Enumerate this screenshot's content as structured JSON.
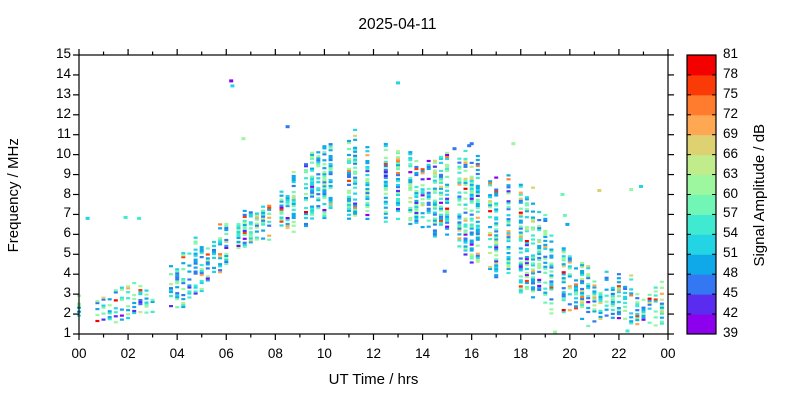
{
  "chart_data": {
    "type": "scatter",
    "title": "2025-04-11",
    "xlabel": "UT Time / hrs",
    "ylabel": "Frequency / MHz",
    "xlim": [
      0,
      24
    ],
    "ylim": [
      1,
      15
    ],
    "x_tick_hours": [
      0,
      2,
      4,
      6,
      8,
      10,
      12,
      14,
      16,
      18,
      20,
      22,
      24
    ],
    "x_tick_labels": [
      "00",
      "02",
      "04",
      "06",
      "08",
      "10",
      "12",
      "14",
      "16",
      "18",
      "20",
      "22",
      "00"
    ],
    "x_minor_tick_hours": [
      1,
      3,
      5,
      7,
      9,
      11,
      13,
      15,
      17,
      19,
      21,
      23
    ],
    "y_tick_labels": [
      1,
      2,
      3,
      4,
      5,
      6,
      7,
      8,
      9,
      10,
      11,
      12,
      13,
      14,
      15
    ],
    "grid": "off",
    "frame_color": "#000000",
    "background_color": "#ffffff",
    "colorbar": {
      "label": "Signal Amplitude / dB",
      "min": 39,
      "max": 81,
      "step": 3,
      "tick_labels": [
        39,
        42,
        45,
        48,
        51,
        54,
        57,
        60,
        63,
        66,
        69,
        72,
        75,
        78,
        81
      ],
      "band_colors_bottom_to_top": [
        "#8c00ee",
        "#5a2cf0",
        "#3377f2",
        "#0fa8e8",
        "#22d4e4",
        "#3fead0",
        "#72f6b5",
        "#9df79e",
        "#c0ec8c",
        "#ddd172",
        "#ffa853",
        "#ff7b2e",
        "#fa3b08",
        "#f40000"
      ]
    },
    "sounding_interval_hours": 0.25,
    "frequency_step_mhz": 0.1,
    "envelope": [
      {
        "hour": 0,
        "f_min": 1.7,
        "f_max": 2.7,
        "density": 0.5,
        "warm_fraction": 0.05
      },
      {
        "hour": 1,
        "f_min": 1.6,
        "f_max": 2.9,
        "density": 0.55,
        "warm_fraction": 0.05
      },
      {
        "hour": 2,
        "f_min": 1.7,
        "f_max": 3.3,
        "density": 0.55,
        "warm_fraction": 0.06
      },
      {
        "hour": 3,
        "f_min": 1.8,
        "f_max": 3.5,
        "density": 0.5,
        "warm_fraction": 0.06
      },
      {
        "hour": 4,
        "f_min": 2.2,
        "f_max": 4.8,
        "density": 0.5,
        "warm_fraction": 0.05
      },
      {
        "hour": 5,
        "f_min": 3.2,
        "f_max": 5.8,
        "density": 0.55,
        "warm_fraction": 0.05
      },
      {
        "hour": 6,
        "f_min": 4.4,
        "f_max": 6.6,
        "density": 0.6,
        "warm_fraction": 0.05
      },
      {
        "hour": 7,
        "f_min": 5.6,
        "f_max": 7.3,
        "density": 0.65,
        "warm_fraction": 0.04
      },
      {
        "hour": 8,
        "f_min": 6.0,
        "f_max": 7.8,
        "density": 0.6,
        "warm_fraction": 0.04
      },
      {
        "hour": 9,
        "f_min": 6.3,
        "f_max": 9.3,
        "density": 0.65,
        "warm_fraction": 0.04
      },
      {
        "hour": 10,
        "f_min": 6.5,
        "f_max": 10.4,
        "density": 0.68,
        "warm_fraction": 0.04
      },
      {
        "hour": 11,
        "f_min": 6.6,
        "f_max": 10.9,
        "density": 0.68,
        "warm_fraction": 0.04
      },
      {
        "hour": 12,
        "f_min": 6.4,
        "f_max": 10.9,
        "density": 0.68,
        "warm_fraction": 0.04
      },
      {
        "hour": 13,
        "f_min": 6.5,
        "f_max": 10.5,
        "density": 0.68,
        "warm_fraction": 0.05
      },
      {
        "hour": 14,
        "f_min": 6.2,
        "f_max": 10.0,
        "density": 0.62,
        "warm_fraction": 0.05
      },
      {
        "hour": 15,
        "f_min": 5.9,
        "f_max": 10.4,
        "density": 0.65,
        "warm_fraction": 0.06
      },
      {
        "hour": 16,
        "f_min": 4.6,
        "f_max": 9.8,
        "density": 0.7,
        "warm_fraction": 0.1
      },
      {
        "hour": 17,
        "f_min": 3.8,
        "f_max": 9.4,
        "density": 0.7,
        "warm_fraction": 0.11
      },
      {
        "hour": 18,
        "f_min": 2.7,
        "f_max": 8.7,
        "density": 0.65,
        "warm_fraction": 0.1
      },
      {
        "hour": 19,
        "f_min": 2.2,
        "f_max": 7.2,
        "density": 0.55,
        "warm_fraction": 0.09
      },
      {
        "hour": 20,
        "f_min": 1.8,
        "f_max": 4.7,
        "density": 0.6,
        "warm_fraction": 0.09
      },
      {
        "hour": 21,
        "f_min": 1.5,
        "f_max": 4.0,
        "density": 0.6,
        "warm_fraction": 0.08
      },
      {
        "hour": 22,
        "f_min": 1.4,
        "f_max": 3.7,
        "density": 0.6,
        "warm_fraction": 0.08
      },
      {
        "hour": 23,
        "f_min": 1.5,
        "f_max": 3.4,
        "density": 0.55,
        "warm_fraction": 0.07
      }
    ],
    "outliers": [
      {
        "t": 0.35,
        "f": 6.8,
        "db": 53
      },
      {
        "t": 1.9,
        "f": 6.85,
        "db": 54
      },
      {
        "t": 2.45,
        "f": 6.8,
        "db": 55
      },
      {
        "t": 6.2,
        "f": 13.7,
        "db": 40
      },
      {
        "t": 6.25,
        "f": 13.45,
        "db": 53
      },
      {
        "t": 6.7,
        "f": 10.8,
        "db": 62
      },
      {
        "t": 8.5,
        "f": 11.4,
        "db": 46
      },
      {
        "t": 13.0,
        "f": 13.6,
        "db": 52
      },
      {
        "t": 14.9,
        "f": 4.15,
        "db": 47
      },
      {
        "t": 15.3,
        "f": 10.3,
        "db": 46
      },
      {
        "t": 15.9,
        "f": 10.45,
        "db": 46
      },
      {
        "t": 16.0,
        "f": 10.55,
        "db": 46
      },
      {
        "t": 17.7,
        "f": 10.55,
        "db": 61
      },
      {
        "t": 19.4,
        "f": 1.1,
        "db": 61
      },
      {
        "t": 19.7,
        "f": 8.0,
        "db": 58
      },
      {
        "t": 19.8,
        "f": 6.95,
        "db": 58
      },
      {
        "t": 19.9,
        "f": 6.5,
        "db": 50
      },
      {
        "t": 21.2,
        "f": 8.2,
        "db": 67
      },
      {
        "t": 22.35,
        "f": 1.15,
        "db": 55
      },
      {
        "t": 22.5,
        "f": 8.25,
        "db": 62
      },
      {
        "t": 22.9,
        "f": 8.4,
        "db": 53
      }
    ]
  }
}
